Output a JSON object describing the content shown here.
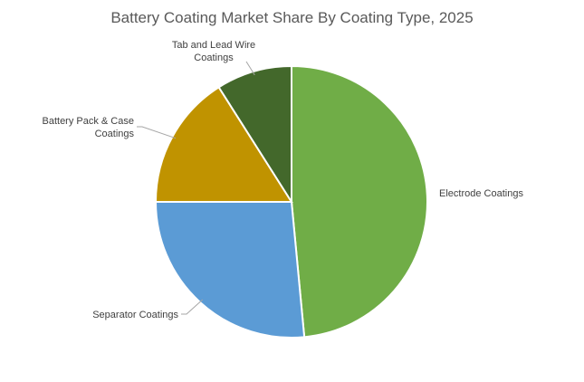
{
  "chart_data": {
    "type": "pie",
    "title": "Battery Coating Market Share By Coating Type, 2025",
    "categories": [
      "Electrode Coatings",
      "Separator Coatings",
      "Battery Pack & Case Coatings",
      "Tab and Lead Wire Coatings"
    ],
    "values": [
      48.5,
      26.5,
      16.0,
      9.0
    ],
    "unit": "%",
    "colors": [
      "#70AD47",
      "#5B9BD5",
      "#C09300",
      "#43682B"
    ],
    "legend": "none",
    "data_labels": "category names with leader lines"
  }
}
